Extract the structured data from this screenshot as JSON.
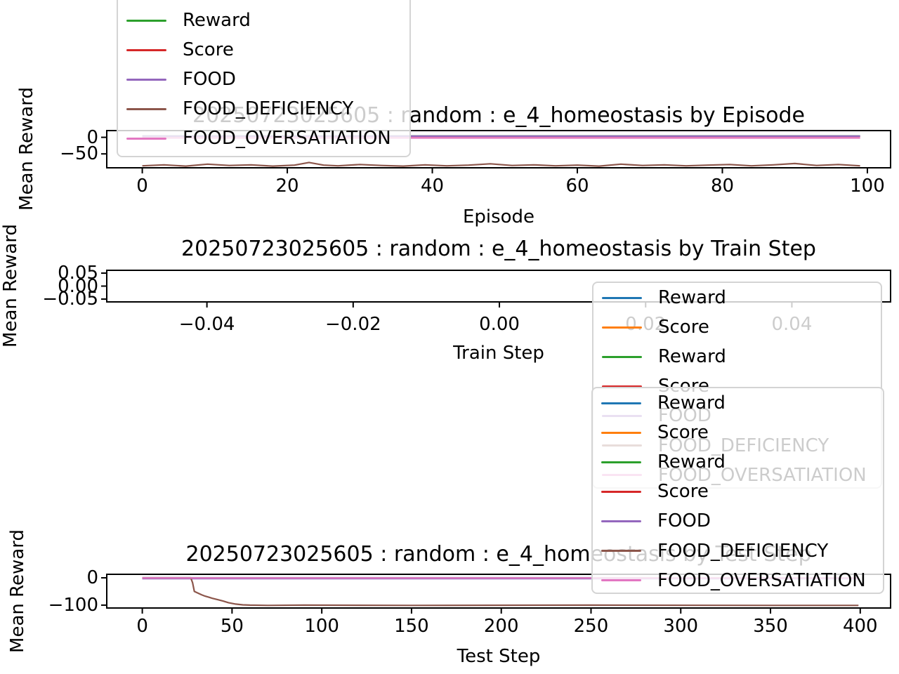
{
  "figure": {
    "background": "#ffffff",
    "text_color": "#000000",
    "legend_frame_alpha": 0.8,
    "palette": {
      "blue": "#1f77b4",
      "orange": "#ff7f0e",
      "green": "#2ca02c",
      "red": "#d62728",
      "purple": "#9467bd",
      "brown": "#8c564b",
      "pink": "#e377c2"
    }
  },
  "chart_data": [
    {
      "type": "line",
      "title": "20250723025605 : random : e_4_homeostasis by Episode",
      "xlabel": "Episode",
      "ylabel": "Mean Reward",
      "xlim": [
        -4.9,
        103.2
      ],
      "ylim": [
        -92,
        20.3
      ],
      "xticks": [
        0,
        20,
        40,
        60,
        80,
        100
      ],
      "xtick_labels": [
        "0",
        "20",
        "40",
        "60",
        "80",
        "100"
      ],
      "yticks": [
        0,
        -50
      ],
      "ytick_labels": [
        "0",
        "−50"
      ],
      "grid": false,
      "legend_position": "upper left (outside, overlapping title)",
      "legend": [
        {
          "label": "Reward",
          "color": "#2ca02c"
        },
        {
          "label": "Score",
          "color": "#d62728"
        },
        {
          "label": "FOOD",
          "color": "#9467bd"
        },
        {
          "label": "FOOD_DEFICIENCY",
          "color": "#8c564b"
        },
        {
          "label": "FOOD_OVERSATIATION",
          "color": "#e377c2"
        }
      ],
      "series": [
        {
          "name": "Reward",
          "color": "#2ca02c",
          "x": [
            0,
            99
          ],
          "y": [
            4,
            4
          ]
        },
        {
          "name": "Score",
          "color": "#d62728",
          "x": [
            0,
            99
          ],
          "y": [
            3,
            3
          ]
        },
        {
          "name": "FOOD",
          "color": "#9467bd",
          "x": [
            0,
            99
          ],
          "y": [
            3.5,
            3.5
          ]
        },
        {
          "name": "FOOD_DEFICIENCY",
          "color": "#8c564b",
          "x": [
            0,
            3,
            6,
            9,
            12,
            15,
            18,
            21,
            23,
            25,
            27,
            30,
            33,
            36,
            39,
            42,
            45,
            48,
            51,
            54,
            57,
            60,
            63,
            66,
            69,
            72,
            75,
            78,
            81,
            84,
            87,
            90,
            93,
            96,
            99
          ],
          "y": [
            -86,
            -83,
            -87,
            -81,
            -85,
            -83,
            -87,
            -84,
            -76,
            -84,
            -86,
            -82,
            -85,
            -87,
            -83,
            -86,
            -84,
            -80,
            -85,
            -83,
            -86,
            -84,
            -87,
            -81,
            -85,
            -83,
            -86,
            -84,
            -82,
            -86,
            -83,
            -79,
            -85,
            -82,
            -86
          ]
        },
        {
          "name": "FOOD_OVERSATIATION",
          "color": "#e377c2",
          "x": [
            0,
            99
          ],
          "y": [
            -2,
            -2
          ]
        }
      ]
    },
    {
      "type": "line",
      "title": "20250723025605 : random : e_4_homeostasis by Train Step",
      "xlabel": "Train Step",
      "ylabel": "Mean Reward",
      "xlim": [
        -0.0537,
        0.0535
      ],
      "ylim": [
        -0.0608,
        0.0608
      ],
      "xticks": [
        -0.04,
        -0.02,
        0.0,
        0.02,
        0.04
      ],
      "xtick_labels": [
        "−0.04",
        "−0.02",
        "0.00",
        "0.02",
        "0.04"
      ],
      "yticks": [
        0.05,
        0.0,
        -0.05
      ],
      "ytick_labels": [
        "0.05",
        "0.00",
        "−0.05"
      ],
      "grid": false,
      "legend_position": "right (overlapping axis and ticks)",
      "legend": [
        {
          "label": "Reward",
          "color": "#1f77b4"
        },
        {
          "label": "Score",
          "color": "#ff7f0e"
        },
        {
          "label": "Reward",
          "color": "#2ca02c"
        },
        {
          "label": "Score",
          "color": "#d62728"
        },
        {
          "label": "FOOD",
          "color": "#9467bd"
        },
        {
          "label": "FOOD_DEFICIENCY",
          "color": "#8c564b"
        },
        {
          "label": "FOOD_OVERSATIATION",
          "color": "#e377c2"
        }
      ],
      "series": []
    },
    {
      "type": "line",
      "title": "20250723025605 : random : e_4_homeostasis by Test Step",
      "xlabel": "Test Step",
      "ylabel": "Mean Reward",
      "xlim": [
        -19.8,
        416.9
      ],
      "ylim": [
        -110.5,
        12.8
      ],
      "xticks": [
        0,
        50,
        100,
        150,
        200,
        250,
        300,
        350,
        400
      ],
      "xtick_labels": [
        "0",
        "50",
        "100",
        "150",
        "200",
        "250",
        "300",
        "350",
        "400"
      ],
      "yticks": [
        0,
        -100
      ],
      "ytick_labels": [
        "0",
        "−100"
      ],
      "grid": false,
      "legend_position": "upper right (overlapping title and train-step legend)",
      "legend": [
        {
          "label": "Reward",
          "color": "#1f77b4"
        },
        {
          "label": "Score",
          "color": "#ff7f0e"
        },
        {
          "label": "Reward",
          "color": "#2ca02c"
        },
        {
          "label": "Score",
          "color": "#d62728"
        },
        {
          "label": "FOOD",
          "color": "#9467bd"
        },
        {
          "label": "FOOD_DEFICIENCY",
          "color": "#8c564b"
        },
        {
          "label": "FOOD_OVERSATIATION",
          "color": "#e377c2"
        }
      ],
      "series": [
        {
          "name": "Reward",
          "color": "#1f77b4",
          "x": [
            0,
            399
          ],
          "y": [
            0,
            0
          ]
        },
        {
          "name": "Score",
          "color": "#ff7f0e",
          "x": [
            0,
            399
          ],
          "y": [
            -0.8,
            -0.8
          ]
        },
        {
          "name": "Reward",
          "color": "#2ca02c",
          "x": [
            0,
            399
          ],
          "y": [
            -1.6,
            -1.6
          ]
        },
        {
          "name": "Score",
          "color": "#d62728",
          "x": [
            0,
            399
          ],
          "y": [
            -2.4,
            -2.4
          ]
        },
        {
          "name": "FOOD",
          "color": "#9467bd",
          "x": [
            0,
            399
          ],
          "y": [
            -3.2,
            -3.2
          ]
        },
        {
          "name": "FOOD_DEFICIENCY",
          "color": "#8c564b",
          "x": [
            0,
            27,
            28,
            29,
            31,
            33,
            35,
            37,
            39,
            42,
            45,
            48,
            52,
            56,
            60,
            70,
            90,
            150,
            250,
            350,
            399
          ],
          "y": [
            0,
            0,
            -18,
            -50,
            -56,
            -62,
            -67,
            -71,
            -75,
            -80,
            -85,
            -91,
            -96,
            -99,
            -100,
            -101,
            -100,
            -101,
            -100,
            -101,
            -101
          ]
        },
        {
          "name": "FOOD_OVERSATIATION",
          "color": "#e377c2",
          "x": [
            0,
            399
          ],
          "y": [
            -0.5,
            -0.5
          ]
        }
      ]
    }
  ]
}
